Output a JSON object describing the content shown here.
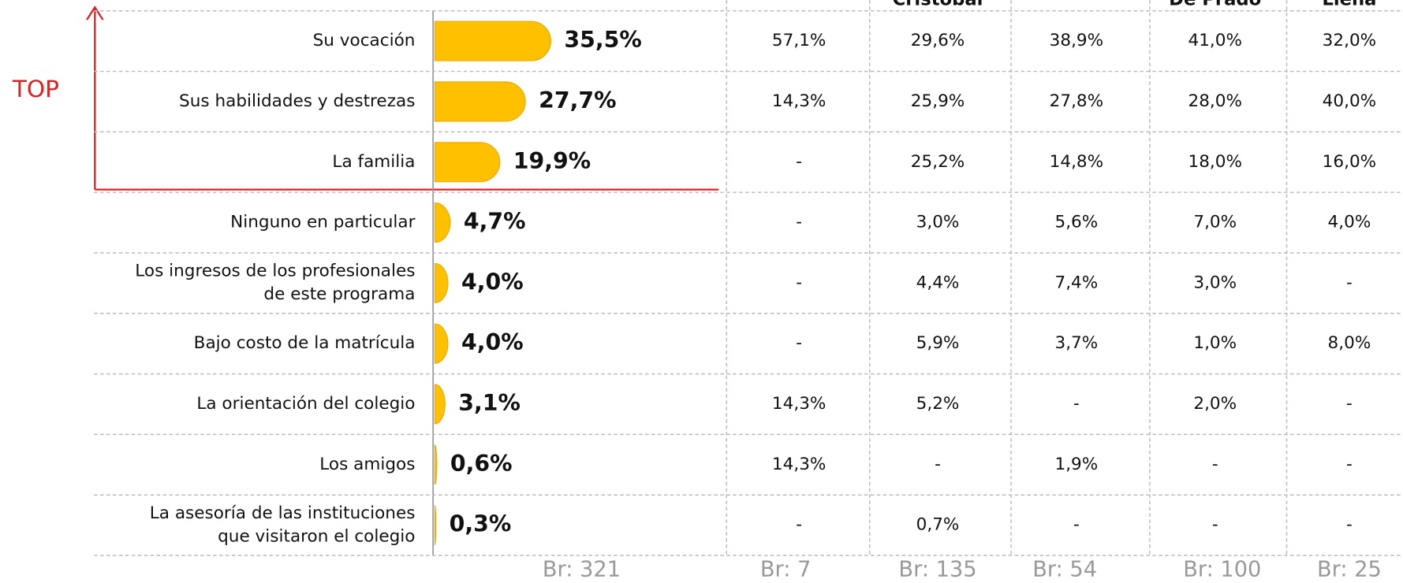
{
  "chart_data": {
    "type": "hbar",
    "categories": [
      "Su vocación",
      "Sus habilidades y destrezas",
      "La familia",
      "Ninguno en particular",
      "Los ingresos de los profesionales\nde este programa",
      "Bajo costo de la matrícula",
      "La orientación del colegio",
      "Los amigos",
      "La asesoría de las instituciones\nque visitaron el colegio"
    ],
    "values": [
      35.5,
      27.7,
      19.9,
      4.7,
      4.0,
      4.0,
      3.1,
      0.6,
      0.3
    ],
    "value_labels": [
      "35,5%",
      "27,7%",
      "19,9%",
      "4,7%",
      "4,0%",
      "4,0%",
      "3,1%",
      "0,6%",
      "0,3%"
    ],
    "color": "#ffc000",
    "xlim": [
      0,
      40
    ],
    "annotation": "TOP",
    "base_label": "Br: 321"
  },
  "table": {
    "columns": [
      null,
      "Cristobal",
      null,
      "De Prado",
      "Llena"
    ],
    "rows": [
      [
        "57,1%",
        "29,6%",
        "38,9%",
        "41,0%",
        "32,0%"
      ],
      [
        "14,3%",
        "25,9%",
        "27,8%",
        "28,0%",
        "40,0%"
      ],
      [
        "-",
        "25,2%",
        "14,8%",
        "18,0%",
        "16,0%"
      ],
      [
        "-",
        "3,0%",
        "5,6%",
        "7,0%",
        "4,0%"
      ],
      [
        "-",
        "4,4%",
        "7,4%",
        "3,0%",
        "-"
      ],
      [
        "-",
        "5,9%",
        "3,7%",
        "1,0%",
        "8,0%"
      ],
      [
        "14,3%",
        "5,2%",
        "-",
        "2,0%",
        "-"
      ],
      [
        "14,3%",
        "-",
        "1,9%",
        "-",
        "-"
      ],
      [
        "-",
        "0,7%",
        "-",
        "-",
        "-"
      ]
    ],
    "bases": [
      "Br: 7",
      "Br: 135",
      "Br: 54",
      "Br: 100",
      "Br: 25"
    ]
  }
}
